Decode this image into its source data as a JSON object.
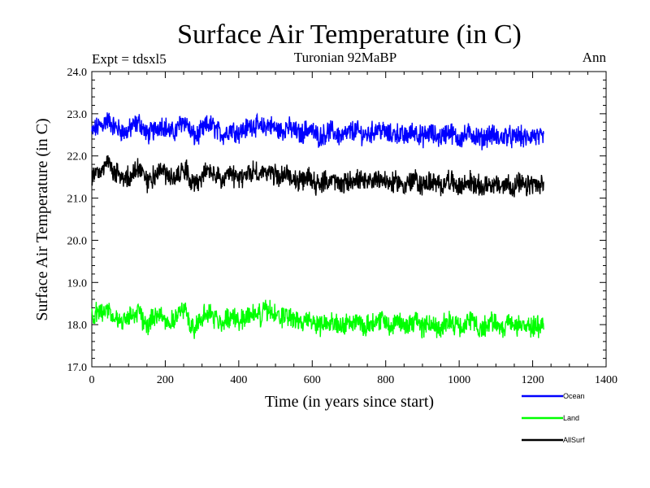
{
  "chart_data": {
    "type": "line",
    "title": "Surface Air Temperature (in C)",
    "subtitle_left": "Expt = tdsxl5",
    "subtitle_center": "Turonian  92MaBP",
    "subtitle_right": "Ann",
    "xlabel": "Time (in years since start)",
    "ylabel": "Surface Air Temperature (in C)",
    "xlim": [
      0,
      1400
    ],
    "ylim": [
      17.0,
      24.0
    ],
    "x_ticks": [
      "0",
      "200",
      "400",
      "600",
      "800",
      "1000",
      "1200",
      "1400"
    ],
    "y_ticks": [
      "17.0",
      "18.0",
      "19.0",
      "20.0",
      "21.0",
      "22.0",
      "23.0",
      "24.0"
    ],
    "x_step": 10,
    "series": [
      {
        "name": "Ocean",
        "color": "#0000ff",
        "x_start": 0,
        "values": [
          22.55,
          22.65,
          22.7,
          22.75,
          22.85,
          22.8,
          22.7,
          22.65,
          22.6,
          22.55,
          22.6,
          22.7,
          22.75,
          22.8,
          22.65,
          22.5,
          22.55,
          22.6,
          22.7,
          22.75,
          22.7,
          22.6,
          22.55,
          22.6,
          22.75,
          22.85,
          22.75,
          22.55,
          22.45,
          22.5,
          22.6,
          22.7,
          22.75,
          22.7,
          22.6,
          22.55,
          22.5,
          22.6,
          22.65,
          22.6,
          22.55,
          22.6,
          22.65,
          22.7,
          22.75,
          22.7,
          22.65,
          22.7,
          22.75,
          22.7,
          22.65,
          22.6,
          22.6,
          22.7,
          22.65,
          22.6,
          22.55,
          22.5,
          22.6,
          22.65,
          22.6,
          22.5,
          22.45,
          22.5,
          22.55,
          22.6,
          22.55,
          22.5,
          22.45,
          22.5,
          22.55,
          22.6,
          22.6,
          22.55,
          22.5,
          22.5,
          22.55,
          22.6,
          22.65,
          22.6,
          22.55,
          22.5,
          22.5,
          22.55,
          22.5,
          22.45,
          22.5,
          22.55,
          22.6,
          22.5,
          22.45,
          22.5,
          22.55,
          22.5,
          22.45,
          22.45,
          22.5,
          22.6,
          22.55,
          22.45,
          22.4,
          22.45,
          22.5,
          22.55,
          22.5,
          22.45,
          22.4,
          22.45,
          22.5,
          22.5,
          22.45,
          22.4,
          22.45,
          22.5,
          22.45,
          22.4,
          22.5,
          22.45,
          22.4,
          22.45,
          22.5,
          22.45,
          22.4,
          22.45
        ]
      },
      {
        "name": "Land",
        "color": "#00ff00",
        "x_start": 0,
        "values": [
          18.15,
          18.25,
          18.3,
          18.35,
          18.4,
          18.3,
          18.15,
          18.1,
          18.05,
          18.1,
          18.2,
          18.25,
          18.3,
          18.25,
          18.1,
          18.0,
          18.05,
          18.2,
          18.3,
          18.25,
          18.1,
          18.05,
          18.1,
          18.2,
          18.3,
          18.35,
          18.2,
          18.0,
          17.95,
          18.05,
          18.15,
          18.25,
          18.3,
          18.2,
          18.1,
          18.05,
          18.1,
          18.15,
          18.2,
          18.15,
          18.1,
          18.15,
          18.2,
          18.25,
          18.3,
          18.25,
          18.2,
          18.3,
          18.35,
          18.3,
          18.2,
          18.15,
          18.15,
          18.25,
          18.2,
          18.1,
          18.05,
          18.0,
          18.1,
          18.15,
          18.1,
          18.0,
          17.95,
          18.05,
          18.1,
          18.15,
          18.1,
          18.0,
          17.95,
          18.0,
          18.05,
          18.1,
          18.1,
          18.05,
          17.95,
          18.0,
          18.05,
          18.1,
          18.15,
          18.1,
          18.05,
          18.0,
          18.0,
          18.1,
          18.05,
          17.95,
          18.0,
          18.05,
          18.1,
          18.0,
          17.95,
          18.0,
          18.05,
          18.0,
          17.95,
          17.95,
          18.0,
          18.1,
          18.05,
          17.95,
          17.9,
          17.95,
          18.0,
          18.1,
          18.05,
          17.95,
          17.9,
          17.95,
          18.05,
          18.1,
          18.0,
          17.9,
          17.95,
          18.05,
          18.0,
          17.9,
          18.0,
          17.95,
          17.9,
          17.95,
          18.0,
          17.95,
          17.9,
          17.95
        ]
      },
      {
        "name": "AllSurf",
        "color": "#000000",
        "x_start": 0,
        "values": [
          21.5,
          21.6,
          21.65,
          21.7,
          21.8,
          21.75,
          21.6,
          21.55,
          21.5,
          21.45,
          21.5,
          21.6,
          21.65,
          21.7,
          21.55,
          21.4,
          21.45,
          21.55,
          21.65,
          21.7,
          21.6,
          21.5,
          21.45,
          21.5,
          21.65,
          21.75,
          21.65,
          21.45,
          21.35,
          21.4,
          21.5,
          21.6,
          21.65,
          21.6,
          21.5,
          21.45,
          21.4,
          21.5,
          21.55,
          21.5,
          21.45,
          21.5,
          21.55,
          21.6,
          21.65,
          21.6,
          21.55,
          21.6,
          21.65,
          21.6,
          21.55,
          21.5,
          21.5,
          21.6,
          21.55,
          21.45,
          21.4,
          21.35,
          21.45,
          21.5,
          21.45,
          21.35,
          21.3,
          21.35,
          21.4,
          21.45,
          21.4,
          21.35,
          21.3,
          21.35,
          21.4,
          21.45,
          21.45,
          21.4,
          21.35,
          21.35,
          21.4,
          21.45,
          21.5,
          21.45,
          21.4,
          21.35,
          21.35,
          21.4,
          21.35,
          21.3,
          21.35,
          21.4,
          21.45,
          21.35,
          21.3,
          21.35,
          21.4,
          21.35,
          21.3,
          21.3,
          21.35,
          21.45,
          21.4,
          21.3,
          21.25,
          21.3,
          21.35,
          21.4,
          21.35,
          21.3,
          21.25,
          21.3,
          21.35,
          21.35,
          21.3,
          21.25,
          21.3,
          21.35,
          21.3,
          21.25,
          21.35,
          21.3,
          21.25,
          21.3,
          21.35,
          21.3,
          21.25,
          21.3
        ]
      }
    ]
  }
}
